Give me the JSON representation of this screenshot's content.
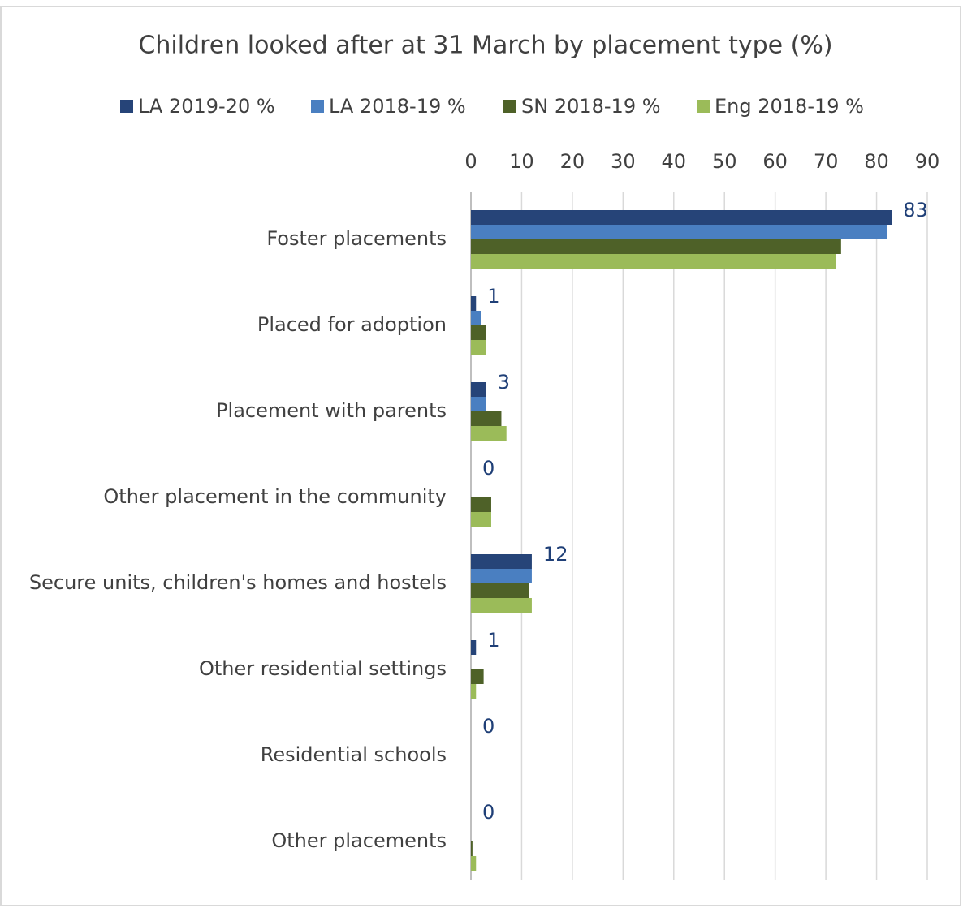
{
  "chart_data": {
    "type": "barh",
    "title": "Children looked after at 31 March by placement type (%)",
    "categories": [
      "Foster placements",
      "Placed for adoption",
      "Placement with parents",
      "Other placement in the community",
      "Secure units, children's homes and hostels",
      "Other residential settings",
      "Residential schools",
      "Other placements"
    ],
    "series": [
      {
        "name": "LA 2019-20 %",
        "color": "#264478",
        "values": [
          83,
          1,
          3,
          0,
          12,
          1,
          0,
          0
        ],
        "data_labels": true
      },
      {
        "name": "LA 2018-19 %",
        "color": "#4a7fc1",
        "values": [
          82,
          2,
          3,
          0,
          12,
          0,
          0,
          0
        ]
      },
      {
        "name": "SN 2018-19 %",
        "color": "#4e6128",
        "values": [
          73,
          3,
          6,
          4,
          11.5,
          2.5,
          0,
          0.3
        ]
      },
      {
        "name": "Eng 2018-19 %",
        "color": "#9bbb59",
        "values": [
          72,
          3,
          7,
          4,
          12,
          1,
          0,
          1
        ]
      }
    ],
    "xlim": [
      0,
      90
    ],
    "xticks": [
      0,
      10,
      20,
      30,
      40,
      50,
      60,
      70,
      80,
      90
    ],
    "grid": true,
    "legend": "top"
  }
}
